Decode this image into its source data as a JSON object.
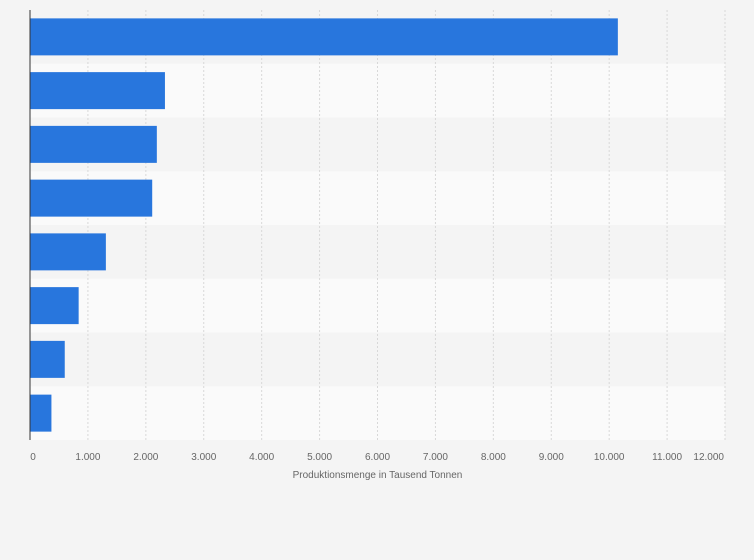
{
  "chart_data": {
    "type": "bar",
    "orientation": "horizontal",
    "categories": [
      "",
      "",
      "",
      "",
      "",
      "",
      "",
      ""
    ],
    "values": [
      10150,
      2330,
      2190,
      2110,
      1310,
      840,
      600,
      370
    ],
    "xlabel": "Produktionsmenge in Tausend Tonnen",
    "ylabel": "",
    "xlim": [
      0,
      12000
    ],
    "x_ticks": [
      0,
      1000,
      2000,
      3000,
      4000,
      5000,
      6000,
      7000,
      8000,
      9000,
      10000,
      11000,
      12000
    ],
    "x_tick_labels": [
      "0",
      "1.000",
      "2.000",
      "3.000",
      "4.000",
      "5.000",
      "6.000",
      "7.000",
      "8.000",
      "9.000",
      "10.000",
      "11.000",
      "12.000"
    ],
    "grid": true,
    "bar_color": "#2876dd",
    "band_colors": [
      "#f4f4f4",
      "#fafafa"
    ],
    "grid_color": "#d8d8d8",
    "axis_color": "#333333",
    "text_color": "#666666"
  }
}
